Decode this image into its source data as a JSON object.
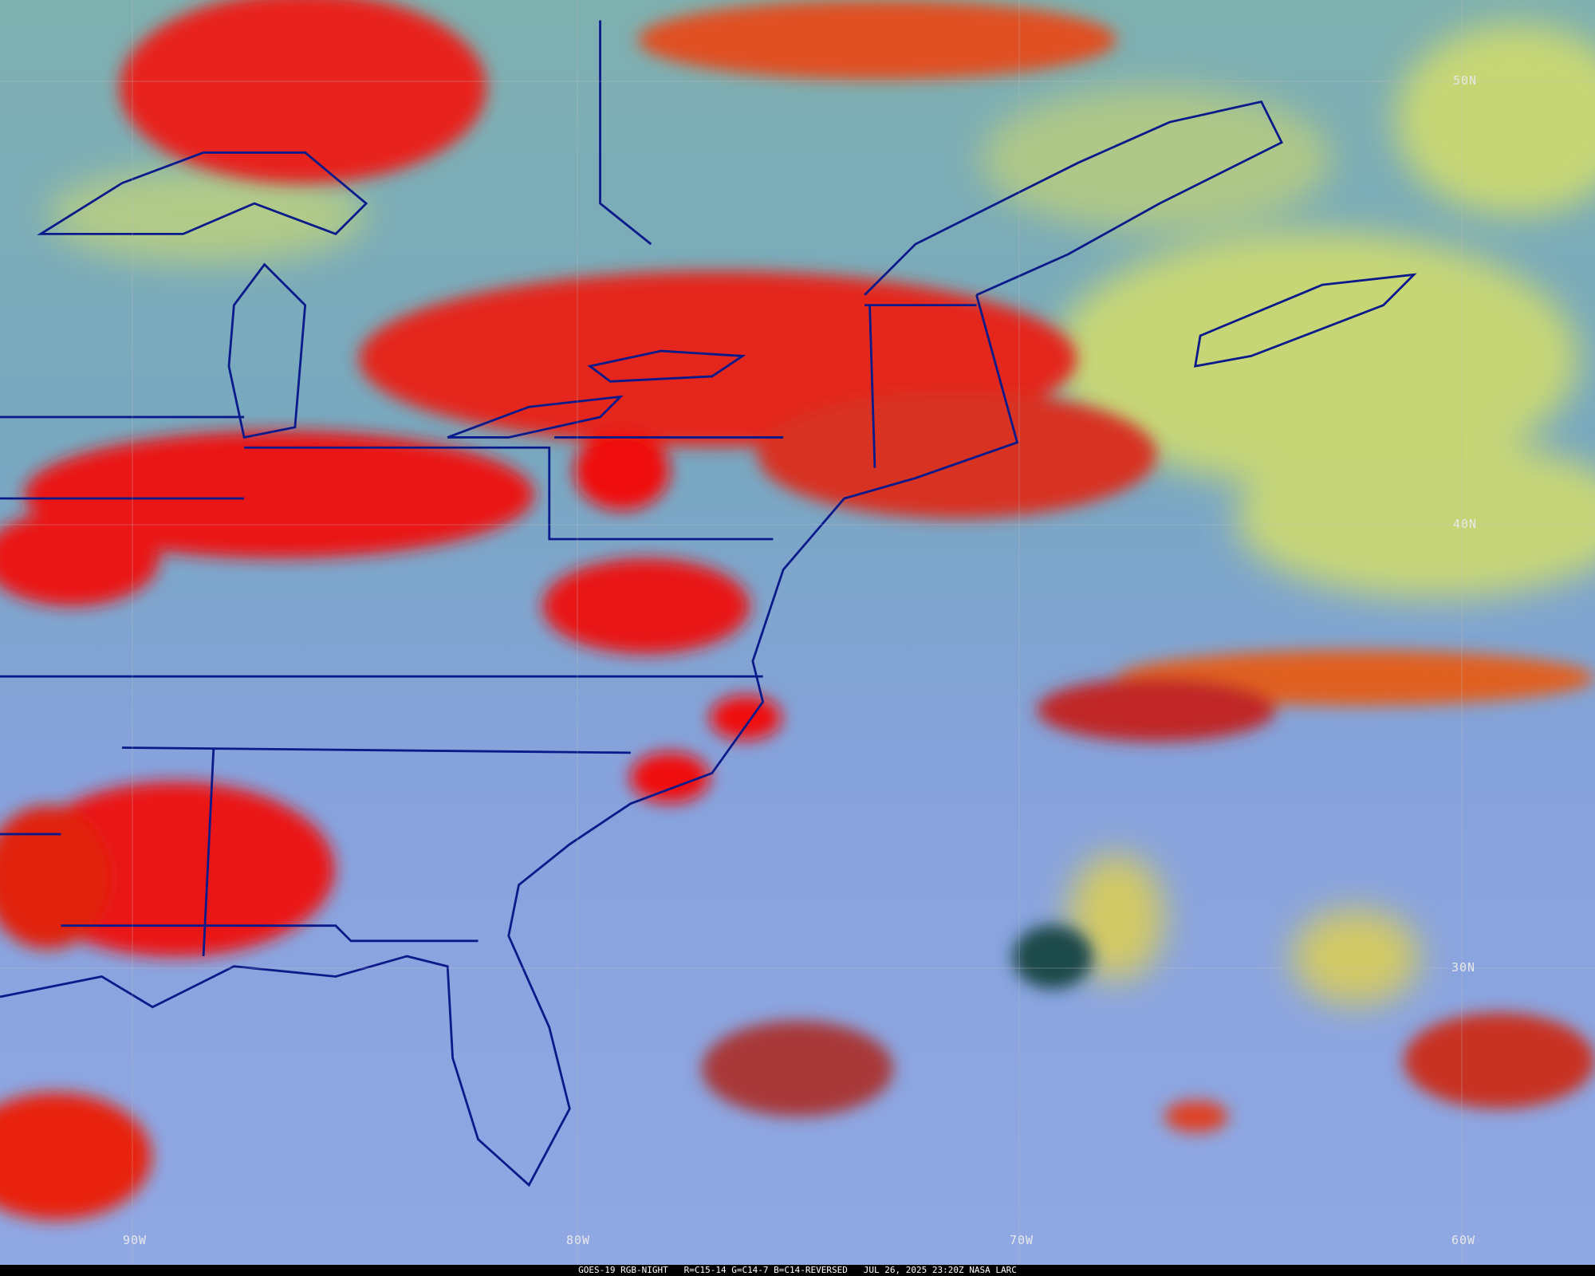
{
  "imagery": {
    "product": "GOES-19 RGB-NIGHT",
    "channels": "R=C15-14 G=C14-7 B=C14-REVERSED",
    "datetime": "JUL 26, 2025 23:20Z",
    "credit": "NASA LARC",
    "colors": {
      "deep_cloud": "#e01010",
      "mid_cloud": "#f07020",
      "low_cloud_yellow": "#d8e060",
      "clear_ocean": "#8aa6e0",
      "clear_north": "#6fa8b0",
      "boundaries": "#0a1a8a"
    }
  },
  "grid": {
    "latitudes": [
      "50N",
      "40N",
      "30N"
    ],
    "longitudes": [
      "90W",
      "80W",
      "70W",
      "60W"
    ]
  }
}
